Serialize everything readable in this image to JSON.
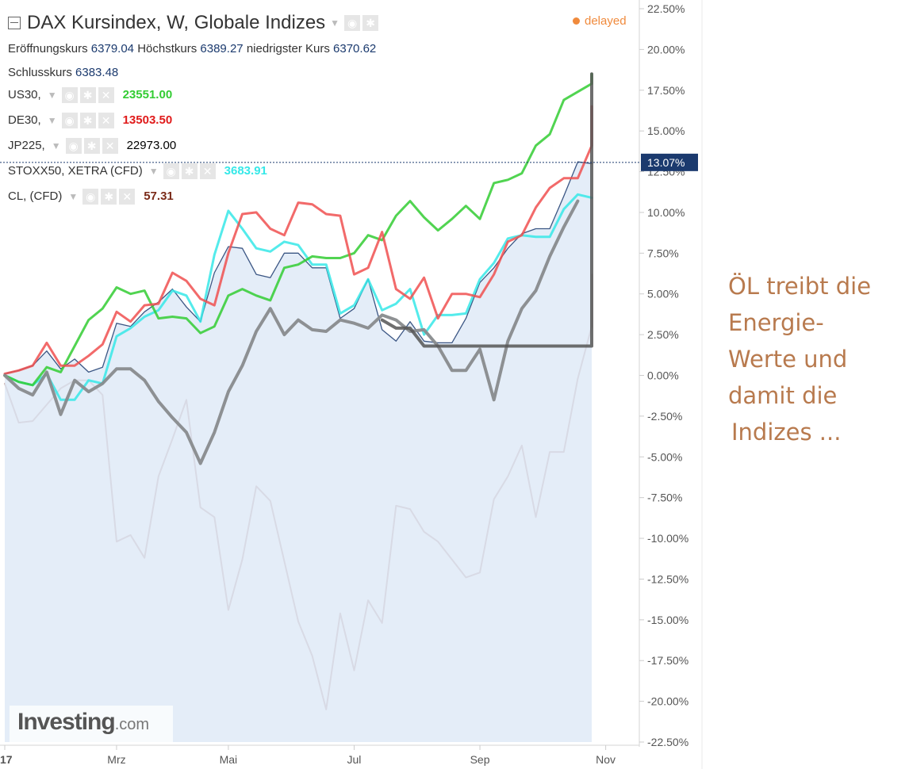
{
  "header": {
    "title": "DAX Kursindex, W, Globale Indizes",
    "status": "delayed",
    "ohlc": [
      {
        "label": "Eröffnungskurs",
        "value": "6379.04"
      },
      {
        "label": "Höchstkurs",
        "value": "6389.27"
      },
      {
        "label": "niedrigster Kurs",
        "value": "6370.62"
      },
      {
        "label": "Schlusskurs",
        "value": "6383.48"
      }
    ]
  },
  "series_legend": [
    {
      "name": "US30,",
      "value": "23551.00",
      "color": "#33cc33"
    },
    {
      "name": "DE30,",
      "value": "13503.50",
      "color": "#e01b1b"
    },
    {
      "name": "JP225,",
      "value": "22973.00",
      "color": "#000000"
    },
    {
      "name": "STOXX50, XETRA (CFD)",
      "value": "3683.91",
      "color": "#36e8e8"
    },
    {
      "name": "CL, (CFD)",
      "value": "57.31",
      "color": "#7a2a18"
    }
  ],
  "current_price_label": "13.07%",
  "annotation": [
    "ÖL treibt die",
    "Energie-",
    "Werte und",
    "damit die",
    "Indizes ..."
  ],
  "watermark": {
    "brand": "Investing",
    "suffix": ".com"
  },
  "chart_data": {
    "type": "line",
    "title": "DAX Kursindex, W, Globale Indizes",
    "xlabel": "",
    "ylabel": "",
    "ylim": [
      -22.5,
      22.5
    ],
    "y_ticks": [
      "22.50%",
      "20.00%",
      "17.50%",
      "15.00%",
      "12.50%",
      "10.00%",
      "7.50%",
      "5.00%",
      "2.50%",
      "0.00%",
      "-2.50%",
      "-5.00%",
      "-7.50%",
      "-10.00%",
      "-12.50%",
      "-15.00%",
      "-17.50%",
      "-20.00%",
      "-22.50%"
    ],
    "x_ticks": [
      {
        "label": "17",
        "week": 0
      },
      {
        "label": "Mrz",
        "week": 8
      },
      {
        "label": "Mai",
        "week": 16
      },
      {
        "label": "Jul",
        "week": 25
      },
      {
        "label": "Sep",
        "week": 34
      },
      {
        "label": "Nov",
        "week": 43
      }
    ],
    "xlim": [
      0,
      46.5
    ],
    "current_value": 13.07,
    "series": [
      {
        "name": "CL, (CFD)",
        "color": "#c4a8a4",
        "width": 2,
        "values": [
          -0.5,
          -2.9,
          -2.8,
          -1.8,
          -0.8,
          -0.3,
          -0.3,
          -1.2,
          -10.2,
          -9.8,
          -11.2,
          -6.2,
          -3.9,
          -1.5,
          -8.1,
          -8.7,
          -14.4,
          -11.3,
          -6.8,
          -7.7,
          -11.4,
          -15.1,
          -17.2,
          -20.5,
          -14.6,
          -18.1,
          -13.8,
          -15.2,
          -8.0,
          -8.2,
          -9.6,
          -10.2,
          -11.3,
          -12.4,
          -12.1,
          -7.6,
          -6.2,
          -4.3,
          -8.7,
          -4.7,
          -4.7,
          -0.2,
          3.0,
          6.2
        ]
      },
      {
        "name": "DAX Kursindex",
        "color": "#1b3a6e",
        "width": 1.3,
        "area": true,
        "values": [
          0.1,
          0.3,
          0.6,
          1.5,
          0.4,
          1.0,
          0.2,
          0.5,
          3.2,
          3.0,
          3.9,
          4.5,
          5.3,
          4.2,
          3.3,
          6.3,
          7.9,
          7.8,
          6.2,
          6.0,
          7.5,
          7.5,
          6.6,
          6.6,
          3.5,
          4.1,
          5.9,
          2.8,
          2.1,
          3.3,
          2.1,
          2.0,
          2.0,
          3.5,
          5.7,
          6.6,
          7.8,
          8.7,
          9.0,
          9.0,
          11.0,
          13.1,
          13.0
        ]
      },
      {
        "name": "STOXX50, XETRA (CFD)",
        "color": "#36e8e8",
        "width": 3,
        "values": [
          0.0,
          -0.4,
          -0.6,
          0.1,
          -1.5,
          -1.5,
          -0.3,
          -0.5,
          2.4,
          2.9,
          3.6,
          4.0,
          5.2,
          4.9,
          3.3,
          7.4,
          10.1,
          9.0,
          7.8,
          7.6,
          8.2,
          8.0,
          6.8,
          6.8,
          3.8,
          4.3,
          5.9,
          4.0,
          4.4,
          5.3,
          2.5,
          3.7,
          3.7,
          3.8,
          5.9,
          6.9,
          8.4,
          8.6,
          8.5,
          8.5,
          10.2,
          11.1,
          10.9
        ]
      },
      {
        "name": "US30,",
        "color": "#33cc33",
        "width": 3,
        "values": [
          0.0,
          -0.4,
          -0.6,
          0.5,
          0.2,
          1.8,
          3.4,
          4.1,
          5.4,
          5.0,
          5.2,
          3.5,
          3.6,
          3.5,
          2.6,
          3.0,
          4.9,
          5.3,
          4.9,
          4.6,
          6.6,
          6.8,
          7.3,
          7.2,
          7.2,
          7.5,
          8.6,
          8.3,
          9.8,
          10.7,
          9.7,
          8.9,
          9.6,
          10.4,
          9.6,
          11.8,
          12.0,
          12.4,
          14.1,
          14.8,
          16.9,
          17.4,
          17.9,
          18.5
        ]
      },
      {
        "name": "DE30,",
        "color": "#f05050",
        "width": 3,
        "values": [
          0.1,
          0.3,
          0.6,
          2.0,
          0.6,
          0.6,
          1.2,
          1.9,
          3.9,
          3.3,
          4.3,
          4.4,
          6.3,
          5.8,
          4.7,
          4.3,
          7.5,
          9.9,
          10.0,
          9.0,
          8.6,
          10.6,
          10.5,
          9.9,
          9.8,
          6.2,
          6.6,
          8.8,
          5.3,
          4.7,
          6.0,
          3.5,
          5.0,
          5.0,
          4.8,
          6.2,
          8.2,
          8.6,
          10.3,
          11.5,
          12.1,
          12.1,
          14.1,
          16.2,
          16.5
        ]
      },
      {
        "name": "JP225,",
        "color": "#888b8d",
        "width": 4,
        "values": [
          0.0,
          -0.8,
          -1.2,
          0.2,
          -2.4,
          -0.3,
          -1.0,
          -0.5,
          0.4,
          0.4,
          -0.3,
          -1.6,
          -2.6,
          -3.5,
          -5.4,
          -3.5,
          -1.0,
          0.6,
          2.7,
          4.1,
          2.5,
          3.4,
          2.8,
          2.7,
          3.4,
          3.2,
          2.9,
          3.7,
          3.4,
          2.7,
          2.8,
          1.8,
          0.3,
          0.3,
          1.6,
          -1.5,
          2.1,
          4.1,
          5.2,
          7.3,
          9.1,
          10.7
        ]
      },
      {
        "name": "JP225-recent",
        "color": "#555555",
        "width": 4,
        "start": 27,
        "values": [
          3.4,
          2.9,
          2.9,
          1.8,
          1.8,
          1.8,
          1.8,
          1.8,
          1.8,
          1.8,
          1.8,
          1.8,
          1.8,
          1.8,
          1.8,
          1.8,
          18.5
        ]
      }
    ]
  }
}
